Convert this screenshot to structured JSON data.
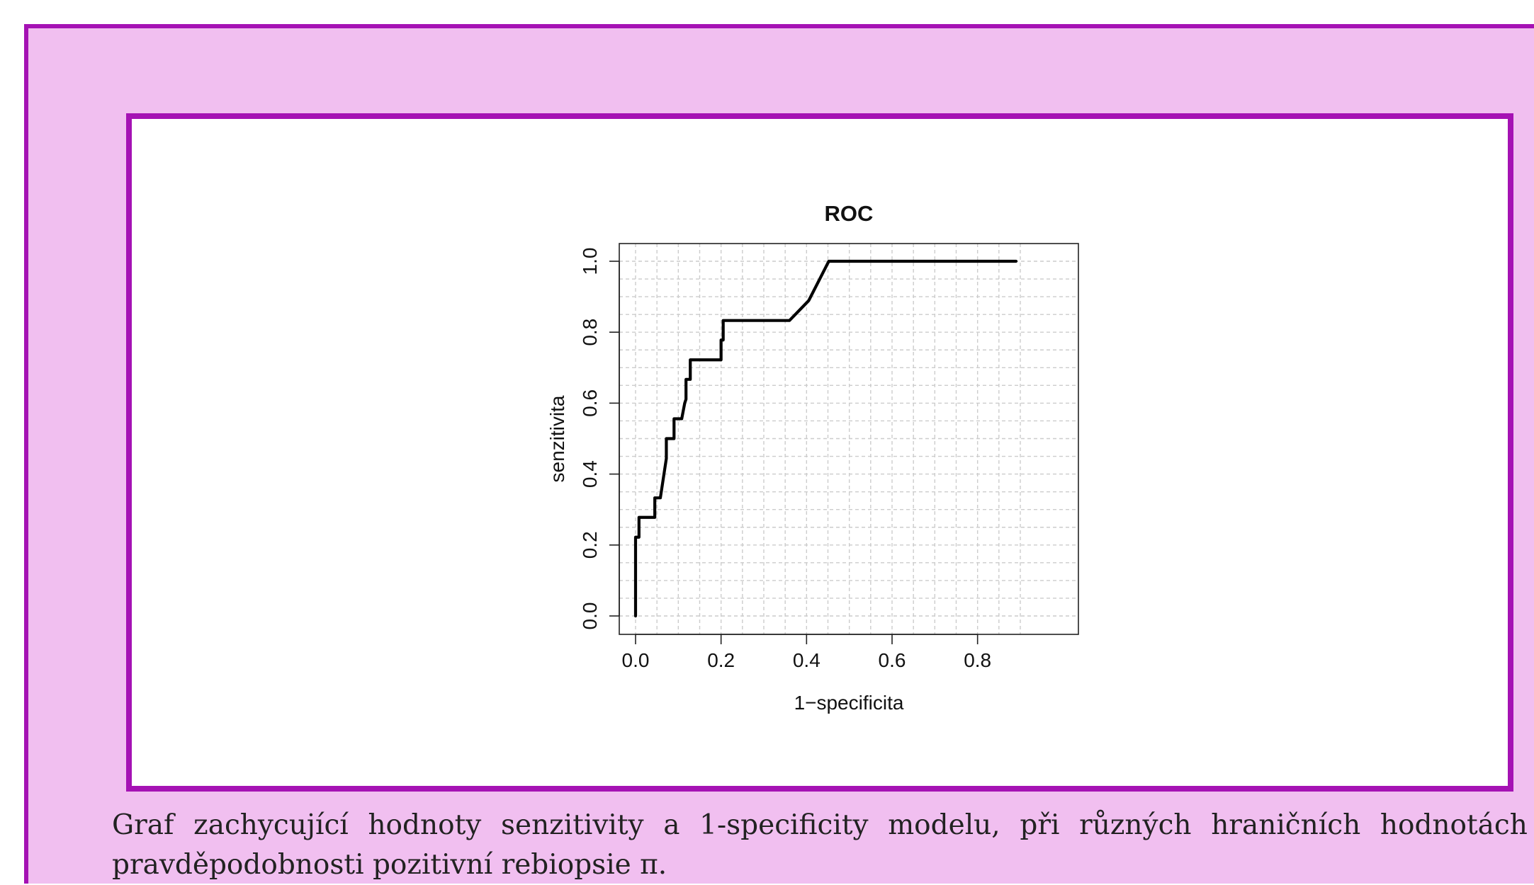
{
  "colors": {
    "background": "#f1bff0",
    "frame": "#a512b4",
    "plot_background": "#ffffff",
    "line": "#000000",
    "grid": "#cccccc"
  },
  "caption": {
    "line1_words": [
      "Graf",
      "zachycující",
      "hodnoty",
      "senzitivity",
      "a",
      "1-specificity",
      "modelu,",
      "při",
      "různých",
      "hraničních",
      "hodnotách"
    ],
    "line2": "pravděpodobnosti pozitivní rebiopsie π."
  },
  "chart_data": {
    "type": "line",
    "title": "ROC",
    "xlabel": "1−specificita",
    "ylabel": "senzitivita",
    "xlim": [
      0,
      0.9
    ],
    "ylim": [
      0,
      1.0
    ],
    "xticks": [
      0.0,
      0.2,
      0.4,
      0.6,
      0.8
    ],
    "xtick_labels": [
      "0.0",
      "0.2",
      "0.4",
      "0.6",
      "0.8"
    ],
    "yticks": [
      0.0,
      0.2,
      0.4,
      0.6,
      0.8,
      1.0
    ],
    "ytick_labels": [
      "0.0",
      "0.2",
      "0.4",
      "0.6",
      "0.8",
      "1.0"
    ],
    "grid": true,
    "grid_style": "dashed",
    "series": [
      {
        "x": [
          0.0,
          0.0,
          0.008,
          0.008,
          0.045,
          0.045,
          0.058,
          0.072,
          0.072,
          0.09,
          0.09,
          0.108,
          0.115,
          0.118,
          0.118,
          0.128,
          0.128,
          0.2,
          0.2,
          0.205,
          0.205,
          0.36,
          0.405,
          0.452,
          0.89
        ],
        "y": [
          0.0,
          0.222,
          0.222,
          0.278,
          0.278,
          0.333,
          0.333,
          0.444,
          0.5,
          0.5,
          0.556,
          0.556,
          0.6,
          0.611,
          0.667,
          0.667,
          0.722,
          0.722,
          0.778,
          0.778,
          0.833,
          0.833,
          0.889,
          1.0,
          1.0
        ]
      }
    ]
  }
}
